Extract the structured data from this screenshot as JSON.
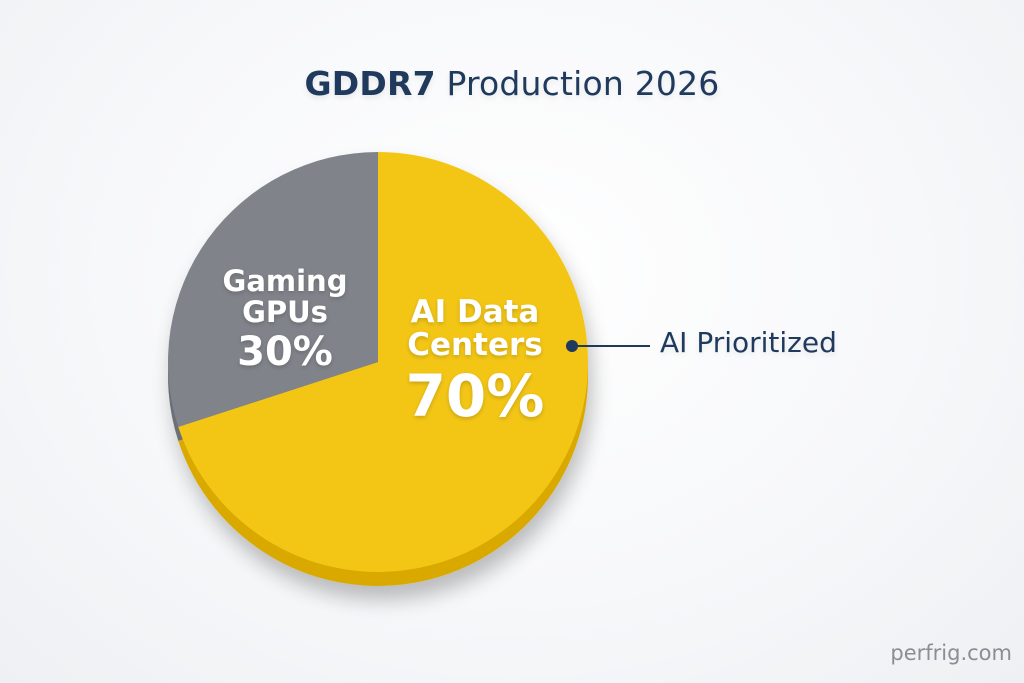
{
  "title": {
    "bold": "GDDR7",
    "rest": "Production 2026"
  },
  "slices": {
    "gaming": {
      "name_line1": "Gaming",
      "name_line2": "GPUs",
      "percent": "30%",
      "color": "#80848a"
    },
    "ai": {
      "name_line1": "AI Data",
      "name_line2": "Centers",
      "percent": "70%",
      "color": "#f3c614",
      "rim_color": "#d9a900"
    }
  },
  "callout": {
    "text": "AI Prioritized",
    "color": "#1f3a5c"
  },
  "watermark": "perfrig.com",
  "chart_data": {
    "type": "pie",
    "title": "GDDR7 Production 2026",
    "categories": [
      "Gaming GPUs",
      "AI Data Centers"
    ],
    "values": [
      30,
      70
    ],
    "unit": "%",
    "colors": [
      "#80848a",
      "#f3c614"
    ],
    "annotations": [
      {
        "target": "AI Data Centers",
        "text": "AI Prioritized"
      }
    ],
    "legend": "none (labels inside slices)",
    "start_angle_deg": 0,
    "direction": "gaming slice counter-clockwise from 12 o'clock"
  }
}
